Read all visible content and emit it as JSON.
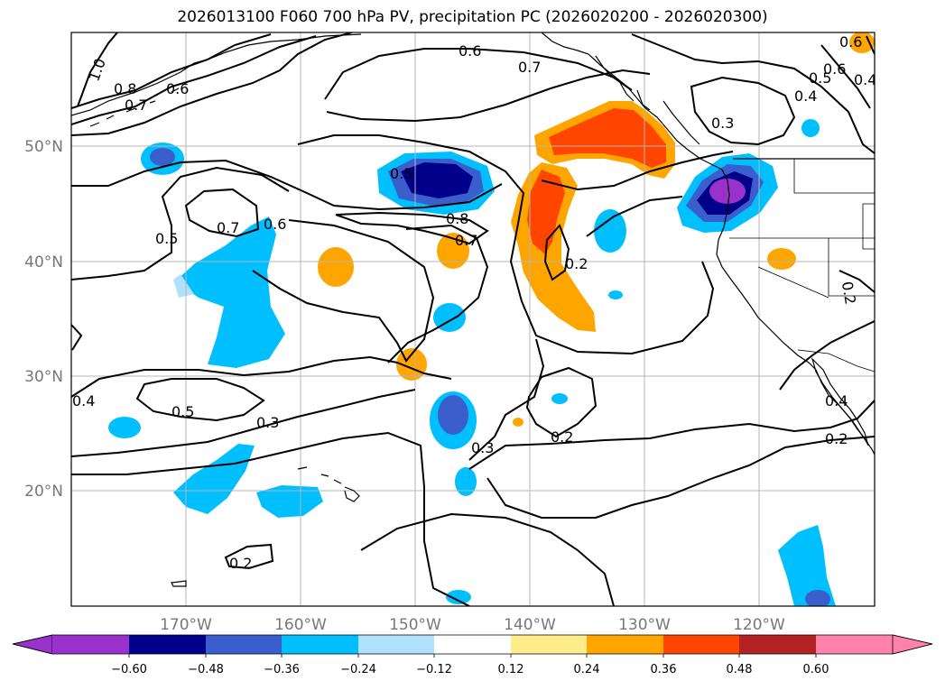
{
  "title": "2026013100 F060 700 hPa PV, precipitation PC (2026020200 - 2026020300)",
  "map": {
    "lon_ticks": [
      "170°W",
      "160°W",
      "150°W",
      "140°W",
      "130°W",
      "120°W"
    ],
    "lat_ticks": [
      "50°N",
      "40°N",
      "30°N",
      "20°N"
    ],
    "gridlines": true
  },
  "colorbar": {
    "orientation": "horizontal",
    "extend": "both",
    "ticks": [
      "−0.60",
      "−0.48",
      "−0.36",
      "−0.24",
      "−0.12",
      "0.12",
      "0.24",
      "0.36",
      "0.48",
      "0.60"
    ],
    "colors": [
      "#9932CC",
      "#00008B",
      "#3A5FCD",
      "#00BFFF",
      "#B0E2FF",
      "#FFFFFF",
      "#FFEC8B",
      "#FFA500",
      "#FF4500",
      "#B22222",
      "#FF82AB"
    ]
  },
  "contour_labels": [
    {
      "text": "0.6"
    },
    {
      "text": "0.7"
    },
    {
      "text": "1.0"
    },
    {
      "text": "0.8"
    },
    {
      "text": "0.7"
    },
    {
      "text": "0.6"
    },
    {
      "text": "0.5"
    },
    {
      "text": "0.8"
    },
    {
      "text": "0.7"
    },
    {
      "text": "0.6"
    },
    {
      "text": "0.7"
    },
    {
      "text": "0.5"
    },
    {
      "text": "0.2"
    },
    {
      "text": "0.3"
    },
    {
      "text": "0.4"
    },
    {
      "text": "0.5"
    },
    {
      "text": "0.6"
    },
    {
      "text": "0.4"
    },
    {
      "text": "0.4"
    },
    {
      "text": "0.5"
    },
    {
      "text": "0.3"
    },
    {
      "text": "0.2"
    },
    {
      "text": "0.3"
    },
    {
      "text": "0.2"
    },
    {
      "text": "0.2"
    },
    {
      "text": "0.4"
    },
    {
      "text": "0.2"
    },
    {
      "text": "0.6"
    }
  ],
  "precip_features": [
    {
      "name": "gulf-of-alaska-positive",
      "level": "0.36"
    },
    {
      "name": "subtropical-positive-plume",
      "level": "0.36"
    },
    {
      "name": "pacific-northwest-negative",
      "level": "-0.60"
    },
    {
      "name": "central-pacific-negative",
      "level": "-0.48"
    },
    {
      "name": "west-pacific-negative-band",
      "level": "-0.24"
    },
    {
      "name": "hawaii-negative",
      "level": "-0.24"
    },
    {
      "name": "subtropical-negative",
      "level": "-0.36"
    },
    {
      "name": "baja-negative",
      "level": "-0.24"
    }
  ]
}
